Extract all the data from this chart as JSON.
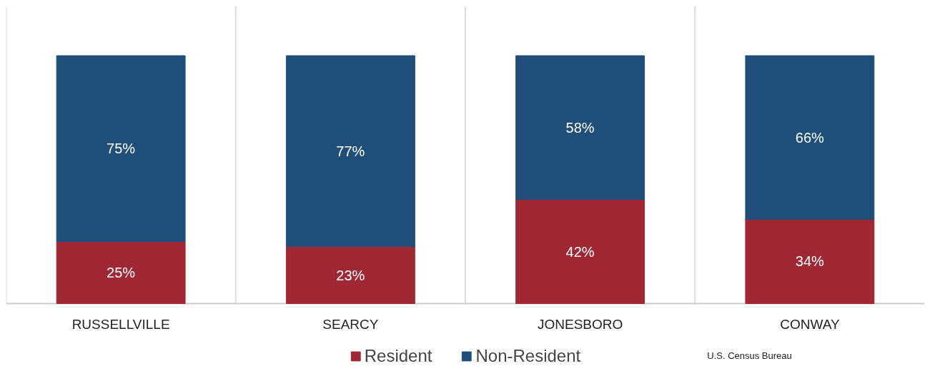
{
  "chart_data": {
    "type": "bar",
    "stacked": true,
    "categories": [
      "RUSSELLVILLE",
      "SEARCY",
      "JONESBORO",
      "CONWAY"
    ],
    "series": [
      {
        "name": "Resident",
        "color": "#a02834",
        "values": [
          25,
          23,
          42,
          34
        ],
        "value_labels": [
          "25%",
          "23%",
          "42%",
          "34%"
        ]
      },
      {
        "name": "Non-Resident",
        "color": "#1f4e79",
        "values": [
          75,
          77,
          58,
          66
        ],
        "value_labels": [
          "75%",
          "77%",
          "58%",
          "66%"
        ]
      }
    ],
    "tick_labels": "x",
    "legend": "bottom",
    "annotations": [
      "U.S. Census Bureau"
    ]
  }
}
